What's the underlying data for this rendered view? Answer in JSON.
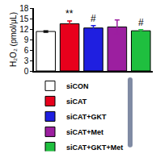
{
  "chart_data": {
    "type": "bar",
    "y_label": "H₂O₂ (pmol/μL)",
    "categories": [
      "siCON",
      "siCAT",
      "siCAT+GKT",
      "siCAT+Met",
      "siCAT+GKT+Met"
    ],
    "values": [
      11.3,
      13.5,
      12.3,
      12.6,
      11.5
    ],
    "errors": [
      0.2,
      0.8,
      0.7,
      2.0,
      0.3
    ],
    "colors": [
      "#ffffff",
      "#e8001c",
      "#1f1fe0",
      "#9c1fa0",
      "#1fbf3f"
    ],
    "annotations": [
      {
        "category": "siCAT",
        "text": "**"
      },
      {
        "category": "siCAT+GKT",
        "text": "#"
      },
      {
        "category": "siCAT+GKT+Met",
        "text": "#"
      }
    ],
    "ylim": [
      0,
      18
    ],
    "yticks": [
      0,
      3,
      6,
      9,
      12,
      15,
      18
    ],
    "grid": false,
    "legend": "bottom left",
    "tick_labels": "y"
  }
}
